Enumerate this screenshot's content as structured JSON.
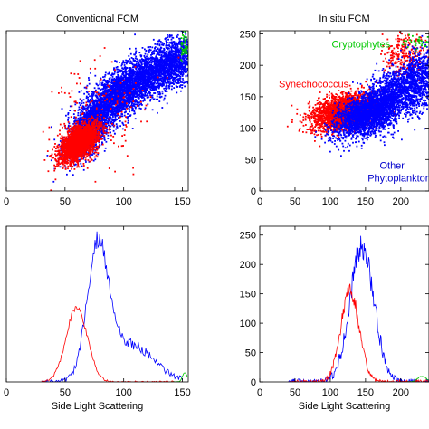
{
  "chart_data": [
    {
      "id": "scatter-conventional",
      "type": "scatter",
      "title": "Conventional FCM",
      "xlabel": "",
      "ylabel": "",
      "xlim": [
        0,
        155
      ],
      "ylim": [
        0,
        250
      ],
      "xticks": [
        0,
        50,
        100,
        150
      ],
      "yticks": [],
      "series": [
        {
          "color": "#0000ff",
          "clusters": [
            {
              "cx": 70,
              "cy": 95,
              "sx": 10,
              "sy": 22,
              "rho": 0.6,
              "n": 1800
            },
            {
              "cx": 95,
              "cy": 150,
              "sx": 14,
              "sy": 22,
              "rho": 0.55,
              "n": 2000
            },
            {
              "cx": 125,
              "cy": 185,
              "sx": 14,
              "sy": 20,
              "rho": 0.45,
              "n": 1400
            },
            {
              "cx": 145,
              "cy": 205,
              "sx": 8,
              "sy": 20,
              "rho": 0.3,
              "n": 600
            }
          ]
        },
        {
          "color": "#ff0000",
          "clusters": [
            {
              "cx": 62,
              "cy": 75,
              "sx": 8,
              "sy": 14,
              "rho": 0.55,
              "n": 2600
            },
            {
              "cx": 80,
              "cy": 120,
              "sx": 20,
              "sy": 45,
              "rho": 0.3,
              "n": 180
            }
          ]
        },
        {
          "color": "#00c800",
          "clusters": [
            {
              "cx": 152,
              "cy": 225,
              "sx": 2,
              "sy": 12,
              "rho": 0,
              "n": 50
            }
          ]
        }
      ]
    },
    {
      "id": "scatter-insitu",
      "type": "scatter",
      "title": "In situ FCM",
      "xlabel": "",
      "ylabel": "",
      "xlim": [
        0,
        240
      ],
      "ylim": [
        0,
        255
      ],
      "xticks": [
        0,
        50,
        100,
        150,
        200
      ],
      "yticks": [
        0,
        50,
        100,
        150,
        200,
        250
      ],
      "series": [
        {
          "color": "#ff0000",
          "clusters": [
            {
              "cx": 120,
              "cy": 125,
              "sx": 22,
              "sy": 14,
              "rho": 0.3,
              "n": 2800
            },
            {
              "cx": 205,
              "cy": 215,
              "sx": 16,
              "sy": 18,
              "rho": 0.2,
              "n": 260
            }
          ]
        },
        {
          "color": "#0000ff",
          "clusters": [
            {
              "cx": 150,
              "cy": 120,
              "sx": 22,
              "sy": 18,
              "rho": 0.5,
              "n": 1800
            },
            {
              "cx": 190,
              "cy": 150,
              "sx": 24,
              "sy": 26,
              "rho": 0.5,
              "n": 1500
            },
            {
              "cx": 225,
              "cy": 180,
              "sx": 12,
              "sy": 28,
              "rho": 0.3,
              "n": 500
            }
          ]
        },
        {
          "color": "#00c800",
          "clusters": [
            {
              "cx": 225,
              "cy": 235,
              "sx": 10,
              "sy": 6,
              "rho": 0,
              "n": 40
            }
          ]
        }
      ],
      "annotations": [
        {
          "text": "Cryptophytes",
          "color": "#00c800",
          "x": 102,
          "y": 228
        },
        {
          "text": "Synechococcus",
          "color": "#ff0000",
          "x": 27,
          "y": 165
        },
        {
          "text": "Other",
          "color": "#0000cc",
          "x": 170,
          "y": 35
        },
        {
          "text": "Phytoplankton",
          "color": "#0000cc",
          "x": 153,
          "y": 15
        }
      ]
    },
    {
      "id": "hist-conventional",
      "type": "line",
      "title": "",
      "xlabel": "Side Light Scattering",
      "ylabel": "",
      "xlim": [
        0,
        155
      ],
      "ylim": [
        0,
        250
      ],
      "xticks": [
        0,
        50,
        100,
        150
      ],
      "yticks": [],
      "series": [
        {
          "color": "#0000ff",
          "peaks": [
            {
              "mu": 78,
              "sigma": 9,
              "amp": 205
            },
            {
              "mu": 105,
              "sigma": 20,
              "amp": 60
            }
          ],
          "xmin": 30,
          "xmax": 150,
          "noise": 6
        },
        {
          "color": "#ff0000",
          "peaks": [
            {
              "mu": 60,
              "sigma": 9,
              "amp": 120
            }
          ],
          "xmin": 30,
          "xmax": 150,
          "noise": 3
        },
        {
          "color": "#00c800",
          "peaks": [
            {
              "mu": 152,
              "sigma": 2,
              "amp": 15
            }
          ],
          "xmin": 140,
          "xmax": 155,
          "noise": 1
        }
      ]
    },
    {
      "id": "hist-insitu",
      "type": "line",
      "title": "",
      "xlabel": "Side Light Scattering",
      "ylabel": "",
      "xlim": [
        0,
        240
      ],
      "ylim": [
        0,
        265
      ],
      "xticks": [
        0,
        50,
        100,
        150,
        200
      ],
      "yticks": [
        0,
        50,
        100,
        150,
        200,
        250
      ],
      "series": [
        {
          "color": "#0000ff",
          "peaks": [
            {
              "mu": 145,
              "sigma": 17,
              "amp": 230
            }
          ],
          "xmin": 40,
          "xmax": 240,
          "noise": 9
        },
        {
          "color": "#ff0000",
          "peaks": [
            {
              "mu": 128,
              "sigma": 13,
              "amp": 155
            }
          ],
          "xmin": 40,
          "xmax": 240,
          "noise": 6
        },
        {
          "color": "#00c800",
          "peaks": [
            {
              "mu": 230,
              "sigma": 6,
              "amp": 10
            }
          ],
          "xmin": 210,
          "xmax": 240,
          "noise": 1
        }
      ]
    }
  ]
}
